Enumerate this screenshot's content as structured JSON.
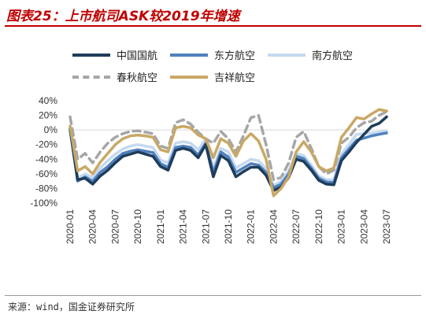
{
  "title": "图表25：上市航司ASK较2019年增速",
  "source": "来源：wind，国金证券研究所",
  "chart_data": {
    "type": "line",
    "x": [
      "2020-01",
      "2020-02",
      "2020-03",
      "2020-04",
      "2020-05",
      "2020-06",
      "2020-07",
      "2020-08",
      "2020-09",
      "2020-10",
      "2020-11",
      "2020-12",
      "2021-01",
      "2021-02",
      "2021-03",
      "2021-04",
      "2021-05",
      "2021-06",
      "2021-07",
      "2021-08",
      "2021-09",
      "2021-10",
      "2021-11",
      "2021-12",
      "2022-01",
      "2022-02",
      "2022-03",
      "2022-04",
      "2022-05",
      "2022-06",
      "2022-07",
      "2022-08",
      "2022-09",
      "2022-10",
      "2022-11",
      "2022-12",
      "2023-01",
      "2023-02",
      "2023-03",
      "2023-04",
      "2023-05",
      "2023-06",
      "2023-07"
    ],
    "xticks": [
      "2020-01",
      "2020-04",
      "2020-07",
      "2020-10",
      "2021-01",
      "2021-04",
      "2021-07",
      "2021-10",
      "2022-01",
      "2022-04",
      "2022-07",
      "2022-10",
      "2023-01",
      "2023-04",
      "2023-07"
    ],
    "yticks": [
      "40%",
      "20%",
      "0%",
      "-20%",
      "-40%",
      "-60%",
      "-80%",
      "-100%"
    ],
    "ylim": [
      -100,
      40
    ],
    "series": [
      {
        "name": "中国国航",
        "color": "#1f3c5a",
        "dash": "solid",
        "values": [
          2,
          -68,
          -66,
          -74,
          -63,
          -55,
          -45,
          -36,
          -33,
          -30,
          -33,
          -36,
          -50,
          -55,
          -28,
          -25,
          -28,
          -38,
          -20,
          -64,
          -35,
          -42,
          -64,
          -57,
          -51,
          -51,
          -62,
          -83,
          -78,
          -65,
          -40,
          -43,
          -55,
          -69,
          -74,
          -75,
          -42,
          -30,
          -17,
          -6,
          5,
          9,
          18
        ]
      },
      {
        "name": "东方航空",
        "color": "#4f81bd",
        "dash": "solid",
        "values": [
          0,
          -70,
          -64,
          -70,
          -58,
          -50,
          -40,
          -32,
          -29,
          -27,
          -29,
          -31,
          -46,
          -51,
          -24,
          -22,
          -24,
          -34,
          -18,
          -58,
          -30,
          -37,
          -58,
          -52,
          -46,
          -48,
          -58,
          -79,
          -74,
          -60,
          -36,
          -39,
          -52,
          -66,
          -71,
          -72,
          -38,
          -26,
          -14,
          -11,
          -8,
          -6,
          -4
        ]
      },
      {
        "name": "南方航空",
        "color": "#c5d9f1",
        "dash": "solid",
        "values": [
          5,
          -66,
          -60,
          -65,
          -52,
          -42,
          -33,
          -26,
          -22,
          -20,
          -22,
          -24,
          -41,
          -45,
          -18,
          -16,
          -18,
          -27,
          -12,
          -52,
          -25,
          -30,
          -52,
          -46,
          -40,
          -42,
          -53,
          -76,
          -70,
          -56,
          -32,
          -35,
          -48,
          -63,
          -68,
          -68,
          -33,
          -20,
          -6,
          -5,
          -4,
          -3,
          -1
        ]
      },
      {
        "name": "春秋航空",
        "color": "#a6a6a6",
        "dash": "dashed",
        "values": [
          18,
          -40,
          -32,
          -45,
          -30,
          -18,
          -10,
          -5,
          -2,
          -1,
          -3,
          -5,
          -22,
          -25,
          10,
          14,
          8,
          -3,
          -12,
          -18,
          -2,
          -12,
          -30,
          -8,
          17,
          20,
          -20,
          -68,
          -65,
          -45,
          -10,
          -2,
          -25,
          -50,
          -60,
          -55,
          -18,
          -10,
          3,
          10,
          12,
          20,
          25
        ]
      },
      {
        "name": "吉祥航空",
        "color": "#c9a865",
        "dash": "solid",
        "values": [
          5,
          -56,
          -50,
          -60,
          -44,
          -32,
          -20,
          -12,
          -8,
          -7,
          -8,
          -10,
          -27,
          -30,
          3,
          5,
          3,
          -7,
          -12,
          -38,
          -12,
          -18,
          -36,
          -15,
          -5,
          -15,
          -40,
          -90,
          -80,
          -64,
          -30,
          -16,
          -30,
          -50,
          -56,
          -52,
          -10,
          3,
          17,
          15,
          22,
          28,
          26
        ]
      }
    ]
  }
}
